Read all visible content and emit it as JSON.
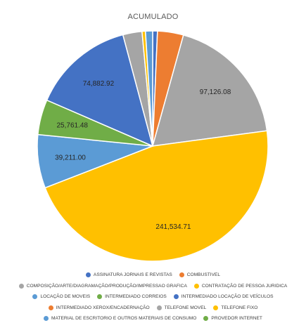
{
  "chart_data": {
    "type": "pie",
    "title": "ACUMULADO",
    "series": [
      {
        "name": "ASSINATURA JORNAIS E REVISTAS",
        "value": 3500,
        "label": "",
        "color": "#4472C4"
      },
      {
        "name": "COMBUSTIVEL",
        "value": 19000,
        "label": "",
        "color": "#ED7D31"
      },
      {
        "name": "COMPOSIÇÃO/ARTE/DIAGRAMAÇÃO/PRODUÇÃO/IMPRESSAO GRAFICA",
        "value": 97126.08,
        "label": "97,126.08",
        "color": "#A5A5A5"
      },
      {
        "name": "CONTRATAÇÃO DE PESSOA JURIDICA",
        "value": 241534.71,
        "label": "241,534.71",
        "color": "#FFC000"
      },
      {
        "name": "LOCAÇÃO DE MOVEIS",
        "value": 39211.0,
        "label": "39,211.00",
        "color": "#5B9BD5"
      },
      {
        "name": "INTERMEDIADO  CORREIOS",
        "value": 25761.48,
        "label": "25,761.48",
        "color": "#70AD47"
      },
      {
        "name": "INTERMEDIADO  LOCAÇÃO DE VEÍCULOS",
        "value": 74882.92,
        "label": "74,882.92",
        "color": "#4472C4"
      },
      {
        "name": "INTERMEDIADO  XEROX/ENCADERNAÇÃO",
        "value": 0,
        "label": "",
        "color": "#ED7D31"
      },
      {
        "name": "TELEFONE MOVEL",
        "value": 14000,
        "label": "",
        "color": "#A5A5A5"
      },
      {
        "name": "TELEFONE FIXO",
        "value": 2500,
        "label": "",
        "color": "#FFC000"
      },
      {
        "name": "MATERIAL DE ESCRITORIO E OUTROS MATERIAIS DE CONSUMO",
        "value": 5200,
        "label": "",
        "color": "#5B9BD5"
      },
      {
        "name": "PROVEDOR INTERNET",
        "value": 0,
        "label": "",
        "color": "#70AD47"
      }
    ],
    "legend": "bottom"
  },
  "legend_rows": [
    [
      0,
      1
    ],
    [
      2,
      3
    ],
    [
      4,
      5,
      6
    ],
    [
      7,
      8,
      9
    ],
    [
      10,
      11
    ]
  ]
}
